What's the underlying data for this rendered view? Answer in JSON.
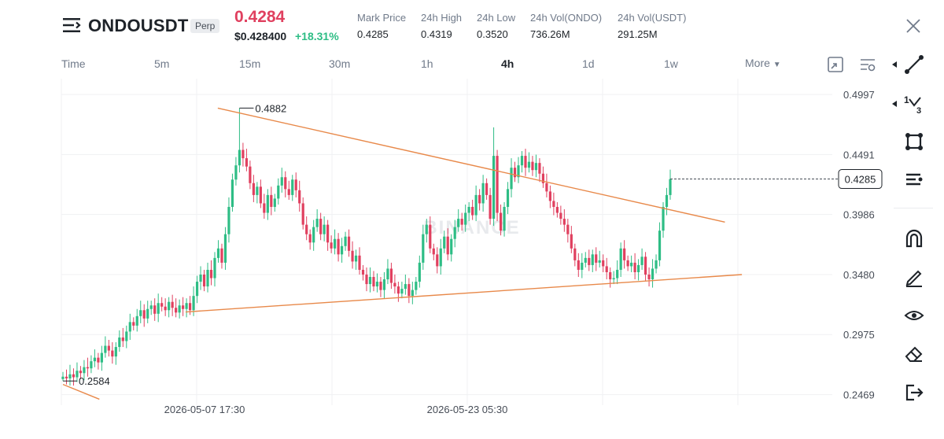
{
  "header": {
    "symbol": "ONDOUSDT",
    "badge": "Perp",
    "last_price": "0.4284",
    "usd_price": "$0.428400",
    "change": "+18.31%",
    "stats": [
      {
        "label": "Mark Price",
        "value": "0.4285"
      },
      {
        "label": "24h High",
        "value": "0.4319"
      },
      {
        "label": "24h Low",
        "value": "0.3520"
      },
      {
        "label": "24h Vol(ONDO)",
        "value": "736.26M"
      },
      {
        "label": "24h Vol(USDT)",
        "value": "291.25M"
      }
    ]
  },
  "toolbar": {
    "intervals": [
      "Time",
      "5m",
      "15m",
      "30m",
      "1h",
      "4h",
      "1d",
      "1w"
    ],
    "active_interval": "4h",
    "more_label": "More"
  },
  "side_tools": [
    "trendline-tool-icon",
    "fibonacci-tool-icon",
    "shape-tool-icon",
    "text-tool-icon",
    "magnet-icon",
    "pencil-icon",
    "eye-icon",
    "eraser-icon",
    "exit-icon"
  ],
  "chart_data": {
    "type": "candlestick",
    "watermark": "BINANCE",
    "y_axis_ticks": [
      "0.4997",
      "0.4491",
      "0.3986",
      "0.3480",
      "0.2975",
      "0.2469"
    ],
    "ylim": [
      0.238,
      0.513
    ],
    "x_axis_ticks": [
      "2026-05-07 17:30",
      "2026-05-23 05:30"
    ],
    "current_price_label": "0.4285",
    "current_price": 0.4285,
    "high_label": "0.4882",
    "low_label": "0.2584",
    "colors": {
      "up": "#2ebd85",
      "down": "#e0405f",
      "trendline": "#e8894a"
    },
    "trendlines": [
      {
        "name": "upper",
        "from": [
          0.255,
          0.4882
        ],
        "to": [
          1.09,
          0.3922
        ]
      },
      {
        "name": "lower",
        "from": [
          0.202,
          0.3165
        ],
        "to": [
          1.118,
          0.348
        ]
      },
      {
        "name": "lower-left",
        "from": [
          0.0,
          0.2555
        ],
        "to": [
          0.06,
          0.243
        ]
      }
    ],
    "closes": [
      0.262,
      0.2605,
      0.264,
      0.2615,
      0.267,
      0.265,
      0.27,
      0.269,
      0.275,
      0.278,
      0.274,
      0.282,
      0.288,
      0.284,
      0.279,
      0.287,
      0.295,
      0.292,
      0.3,
      0.308,
      0.305,
      0.313,
      0.318,
      0.311,
      0.319,
      0.322,
      0.315,
      0.324,
      0.321,
      0.318,
      0.325,
      0.32,
      0.316,
      0.322,
      0.319,
      0.324,
      0.318,
      0.33,
      0.342,
      0.348,
      0.338,
      0.352,
      0.345,
      0.362,
      0.37,
      0.358,
      0.382,
      0.405,
      0.428,
      0.44,
      0.453,
      0.446,
      0.439,
      0.425,
      0.415,
      0.422,
      0.408,
      0.4,
      0.415,
      0.405,
      0.412,
      0.423,
      0.43,
      0.42,
      0.415,
      0.428,
      0.419,
      0.408,
      0.39,
      0.382,
      0.375,
      0.388,
      0.395,
      0.382,
      0.39,
      0.375,
      0.37,
      0.378,
      0.365,
      0.372,
      0.38,
      0.368,
      0.359,
      0.364,
      0.352,
      0.348,
      0.34,
      0.346,
      0.338,
      0.342,
      0.335,
      0.344,
      0.353,
      0.341,
      0.338,
      0.332,
      0.336,
      0.34,
      0.33,
      0.335,
      0.342,
      0.358,
      0.382,
      0.39,
      0.37,
      0.365,
      0.355,
      0.37,
      0.38,
      0.365,
      0.378,
      0.388,
      0.395,
      0.39,
      0.4,
      0.405,
      0.398,
      0.415,
      0.408,
      0.425,
      0.415,
      0.395,
      0.448,
      0.4,
      0.385,
      0.405,
      0.42,
      0.438,
      0.43,
      0.44,
      0.448,
      0.438,
      0.443,
      0.436,
      0.442,
      0.433,
      0.425,
      0.418,
      0.41,
      0.405,
      0.4,
      0.395,
      0.39,
      0.382,
      0.37,
      0.36,
      0.352,
      0.358,
      0.362,
      0.356,
      0.365,
      0.358,
      0.36,
      0.355,
      0.35,
      0.344,
      0.345,
      0.352,
      0.37,
      0.36,
      0.355,
      0.358,
      0.35,
      0.356,
      0.363,
      0.348,
      0.344,
      0.353,
      0.36,
      0.385,
      0.405,
      0.415,
      0.4284
    ],
    "high_index": 50,
    "high_value": 0.4882,
    "low_index": 0,
    "low_value": 0.2584
  }
}
